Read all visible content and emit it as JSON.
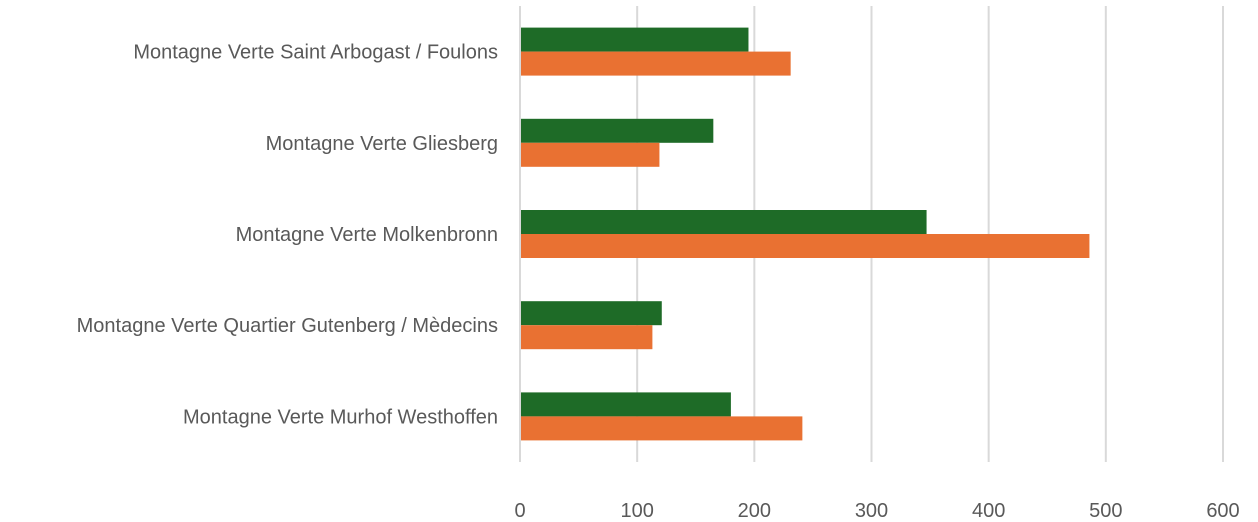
{
  "chart_data": {
    "type": "bar",
    "orientation": "horizontal",
    "categories": [
      "Montagne Verte Saint Arbogast / Foulons",
      "Montagne Verte Gliesberg",
      "Montagne Verte Molkenbronn",
      "Montagne Verte Quartier Gutenberg / Mèdecins",
      "Montagne Verte Murhof Westhoffen"
    ],
    "series": [
      {
        "color": "#1e6b27",
        "values": [
          195,
          165,
          347,
          121,
          180
        ]
      },
      {
        "color": "#e97132",
        "values": [
          231,
          119,
          486,
          113,
          241
        ]
      }
    ],
    "xlim": [
      0,
      600
    ],
    "xticks": [
      "0",
      "100",
      "200",
      "300",
      "400",
      "500",
      "600"
    ],
    "grid": true,
    "legend": "none"
  }
}
